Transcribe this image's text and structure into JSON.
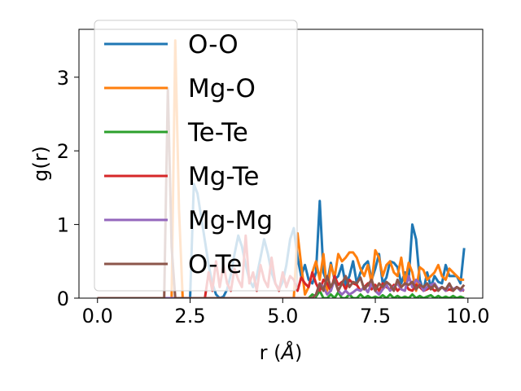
{
  "chart_data": {
    "type": "line",
    "title": "",
    "xlabel": "r (",
    "xlabel_symbol": "Å",
    "xlabel_close": ")",
    "ylabel": "g(r)",
    "xlim": [
      -0.5,
      10.4
    ],
    "ylim": [
      0,
      3.65
    ],
    "xticks": [
      0.0,
      2.5,
      5.0,
      7.5,
      10.0
    ],
    "xtick_labels": [
      "0.0",
      "2.5",
      "5.0",
      "7.5",
      "10.0"
    ],
    "yticks": [
      0,
      1,
      2,
      3
    ],
    "ytick_labels": [
      "0",
      "1",
      "2",
      "3"
    ],
    "grid": false,
    "legend_position": "upper-left",
    "x": [
      0.0,
      0.1,
      0.2,
      0.3,
      0.4,
      0.5,
      0.6,
      0.7,
      0.8,
      0.9,
      1.0,
      1.1,
      1.2,
      1.3,
      1.4,
      1.5,
      1.6,
      1.7,
      1.8,
      1.9,
      2.0,
      2.1,
      2.2,
      2.3,
      2.4,
      2.5,
      2.6,
      2.7,
      2.8,
      2.9,
      3.0,
      3.1,
      3.2,
      3.3,
      3.4,
      3.5,
      3.6,
      3.7,
      3.8,
      3.9,
      4.0,
      4.1,
      4.2,
      4.3,
      4.4,
      4.5,
      4.6,
      4.7,
      4.8,
      4.9,
      5.0,
      5.1,
      5.2,
      5.3,
      5.4,
      5.5,
      5.6,
      5.7,
      5.8,
      5.9,
      6.0,
      6.1,
      6.2,
      6.3,
      6.4,
      6.5,
      6.6,
      6.7,
      6.8,
      6.9,
      7.0,
      7.1,
      7.2,
      7.3,
      7.4,
      7.5,
      7.6,
      7.7,
      7.8,
      7.9,
      8.0,
      8.1,
      8.2,
      8.3,
      8.4,
      8.5,
      8.6,
      8.7,
      8.8,
      8.9,
      9.0,
      9.1,
      9.2,
      9.3,
      9.4,
      9.5,
      9.6,
      9.7,
      9.8,
      9.9
    ],
    "series": [
      {
        "name": "O-O",
        "color": "#1f77b4",
        "values": [
          0,
          0,
          0,
          0,
          0,
          0,
          0,
          0,
          0,
          0,
          0,
          0,
          0,
          0,
          0,
          0,
          0,
          0,
          0,
          0,
          0,
          0,
          0,
          0,
          0,
          0,
          1.55,
          1.42,
          1.1,
          0.78,
          0.45,
          0.2,
          0.05,
          0,
          0.02,
          0.12,
          0.32,
          0.6,
          0.85,
          0.7,
          0.45,
          0.25,
          0.15,
          0.3,
          0.55,
          0.8,
          0.6,
          0.35,
          0.2,
          0.12,
          0.22,
          0.45,
          0.8,
          0.95,
          0.55,
          0.3,
          0.45,
          0.25,
          0.2,
          0.35,
          1.32,
          0.35,
          0.2,
          0.48,
          0.25,
          0.3,
          0.45,
          0.18,
          0.3,
          0.5,
          0.2,
          0.35,
          0.45,
          0.5,
          0.25,
          0.4,
          0.6,
          0.2,
          0.28,
          0.5,
          0.48,
          0.42,
          0.2,
          0.35,
          0.25,
          1.0,
          0.8,
          0.25,
          0.1,
          0.35,
          0.15,
          0.3,
          0.22,
          0.2,
          0.45,
          0.3,
          0.3,
          0.3,
          0.2,
          0.68
        ]
      },
      {
        "name": "Mg-O",
        "color": "#ff7f0e",
        "values": [
          0,
          0,
          0,
          0,
          0,
          0,
          0,
          0,
          0,
          0,
          0,
          0,
          0,
          0,
          0,
          0,
          0,
          0,
          0,
          0,
          0,
          3.5,
          1.2,
          0,
          0,
          0,
          0,
          0,
          0,
          0,
          0,
          0,
          0,
          0,
          0,
          0,
          0,
          0,
          0,
          0,
          0,
          0,
          0,
          0,
          0,
          0,
          0,
          0,
          0,
          0,
          0,
          0,
          0,
          0,
          0.88,
          0.45,
          0.05,
          0.15,
          0.35,
          0.5,
          0.25,
          0.6,
          0.1,
          0.45,
          0.28,
          0.6,
          0.5,
          0.55,
          0.62,
          0.62,
          0.55,
          0.4,
          0.3,
          0.45,
          0.2,
          0.65,
          0.55,
          0.3,
          0.45,
          0.5,
          0.35,
          0.3,
          0.55,
          0.2,
          0.48,
          0.35,
          0.1,
          0.42,
          0.38,
          0.25,
          0.3,
          0.35,
          0.45,
          0.3,
          0.25,
          0.4,
          0.35,
          0.3,
          0.25,
          0.25
        ]
      },
      {
        "name": "Te-Te",
        "color": "#2ca02c",
        "values": [
          0,
          0,
          0,
          0,
          0,
          0,
          0,
          0,
          0,
          0,
          0,
          0,
          0,
          0,
          0,
          0,
          0,
          0,
          0,
          0,
          0,
          0,
          0,
          0,
          0,
          0,
          0,
          0,
          0,
          0,
          0,
          0,
          0,
          0,
          0,
          0,
          0,
          0,
          0,
          0,
          0,
          0,
          0,
          0,
          0,
          0,
          0,
          0,
          0,
          0,
          0,
          0,
          0,
          0,
          0,
          0,
          0,
          0,
          0.05,
          0.02,
          0.1,
          0,
          0,
          0.05,
          0,
          0.08,
          0,
          0,
          0.05,
          0,
          0,
          0.05,
          0,
          0.03,
          0,
          0.02,
          0,
          0.04,
          0,
          0.05,
          0,
          0.03,
          0,
          0.02,
          0,
          0.05,
          0,
          0.03,
          0,
          0.02,
          0.04,
          0,
          0.03,
          0,
          0.02,
          0,
          0.03,
          0,
          0.02,
          0
        ]
      },
      {
        "name": "Mg-Te",
        "color": "#d62728",
        "values": [
          0,
          0,
          0,
          0,
          0,
          0,
          0,
          0,
          0,
          0,
          0,
          0,
          0,
          0,
          0,
          0,
          0,
          0,
          0,
          0,
          0,
          0,
          0,
          0,
          0,
          0,
          0,
          0,
          0,
          0,
          0.35,
          0.1,
          0.5,
          0.15,
          0.45,
          0.2,
          0.1,
          0.4,
          0.25,
          0.15,
          0.85,
          0.2,
          0.35,
          0.1,
          0.45,
          0.25,
          0.15,
          0.55,
          0.2,
          0.1,
          0.35,
          0.15,
          0.3,
          0.25,
          0.1,
          0.28,
          0.2,
          0.15,
          0.35,
          0.2,
          0.1,
          0.25,
          0.2,
          0.1,
          0.3,
          0.18,
          0.22,
          0.12,
          0.25,
          0.2,
          0.18,
          0.1,
          0.15,
          0.2,
          0.12,
          0.18,
          0.1,
          0.2,
          0.15,
          0.12,
          0.18,
          0.1,
          0.15,
          0.2,
          0.12,
          0.1,
          0.18,
          0.15,
          0.1,
          0.12,
          0.15,
          0.1,
          0.12,
          0.15,
          0.1,
          0.12,
          0.1,
          0.15,
          0.12,
          0.1
        ]
      },
      {
        "name": "Mg-Mg",
        "color": "#9467bd",
        "values": [
          0,
          0,
          0,
          0,
          0,
          0,
          0,
          0,
          0,
          0,
          0,
          0,
          0,
          0,
          0,
          0,
          0,
          0,
          0,
          0,
          0,
          0,
          0,
          0,
          0,
          0,
          0,
          0,
          0,
          0,
          0,
          0,
          0,
          0,
          0,
          0,
          0,
          0,
          0,
          0,
          0,
          0,
          0,
          0,
          0,
          0,
          0,
          0,
          0,
          0,
          0,
          0,
          0,
          0,
          0,
          0,
          0,
          0,
          0,
          0.05,
          0.2,
          0.15,
          0.05,
          0.1,
          0.25,
          0.1,
          0.05,
          0.1,
          0.05,
          0.08,
          0.12,
          0.1,
          0.15,
          0.08,
          0.2,
          0.1,
          0.05,
          0.12,
          0.18,
          0.1,
          0.15,
          0.2,
          0.12,
          0.1,
          0.3,
          0.15,
          0.25,
          0.2,
          0.1,
          0.15,
          0.18,
          0.2,
          0.12,
          0.15,
          0.1,
          0.18,
          0.12,
          0.15,
          0.1,
          0.12
        ]
      },
      {
        "name": "O-Te",
        "color": "#8c564b",
        "values": [
          0,
          0,
          0,
          0,
          0,
          0,
          0,
          0,
          0,
          0,
          0,
          0,
          0,
          0,
          0,
          0,
          0,
          0,
          0,
          2.85,
          0.7,
          0,
          0,
          0,
          0,
          0,
          0,
          0,
          0,
          0,
          0,
          0,
          0,
          0,
          0,
          0,
          0,
          0,
          0,
          0,
          0,
          0,
          0,
          0,
          0,
          0,
          0,
          0,
          0,
          0,
          0,
          0,
          0,
          0,
          0,
          0,
          0,
          0,
          0,
          0.05,
          0.2,
          0.1,
          0.3,
          0.15,
          0.25,
          0.1,
          0.2,
          0.3,
          0.15,
          0.22,
          0.2,
          0.28,
          0.12,
          0.18,
          0.25,
          0.1,
          0.2,
          0.15,
          0.22,
          0.18,
          0.1,
          0.25,
          0.15,
          0.2,
          0.18,
          0.22,
          0.12,
          0.18,
          0.15,
          0.2,
          0.12,
          0.18,
          0.1,
          0.15,
          0.12,
          0.2,
          0.1,
          0.15,
          0.12,
          0.18
        ]
      }
    ]
  }
}
